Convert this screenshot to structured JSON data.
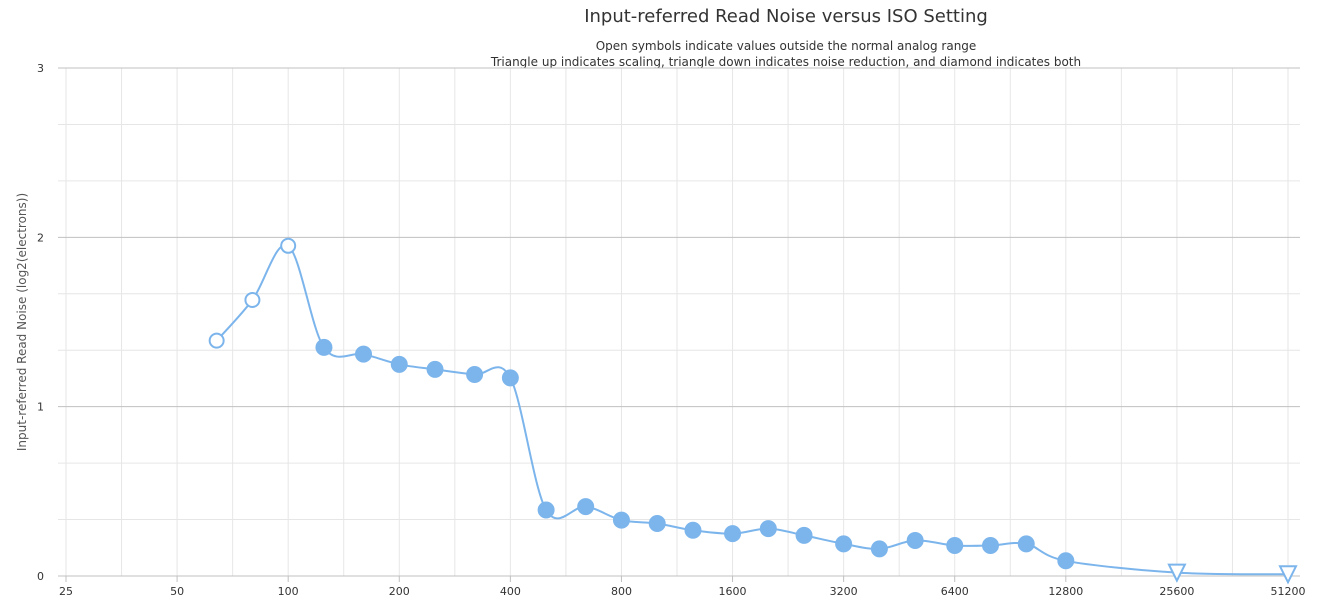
{
  "chart_data": {
    "type": "line",
    "title": "Input-referred Read Noise versus ISO Setting",
    "subtitle_lines": [
      "Open symbols indicate values outside the normal analog range",
      "Triangle up indicates scaling, triangle down indicates noise reduction, and diamond indicates both"
    ],
    "xlabel": "",
    "ylabel": "Input-referred Read Noise (log2(electrons))",
    "x_scale": "log2",
    "x_ticks": [
      25,
      50,
      100,
      200,
      400,
      800,
      1600,
      3200,
      6400,
      12800,
      25600,
      51200
    ],
    "xlim": [
      25,
      51200
    ],
    "y_ticks": [
      0,
      1,
      2,
      3
    ],
    "ylim": [
      0,
      3
    ],
    "grid": true,
    "series_color": "#7cb5ec",
    "series": [
      {
        "points": [
          {
            "x": 64,
            "y": 1.39,
            "marker": "open-circle"
          },
          {
            "x": 80,
            "y": 1.63,
            "marker": "open-circle"
          },
          {
            "x": 100,
            "y": 1.95,
            "marker": "open-circle"
          },
          {
            "x": 125,
            "y": 1.35,
            "marker": "circle"
          },
          {
            "x": 160,
            "y": 1.31,
            "marker": "circle"
          },
          {
            "x": 200,
            "y": 1.25,
            "marker": "circle"
          },
          {
            "x": 250,
            "y": 1.22,
            "marker": "circle"
          },
          {
            "x": 320,
            "y": 1.19,
            "marker": "circle"
          },
          {
            "x": 400,
            "y": 1.17,
            "marker": "circle"
          },
          {
            "x": 500,
            "y": 0.39,
            "marker": "circle"
          },
          {
            "x": 640,
            "y": 0.41,
            "marker": "circle"
          },
          {
            "x": 800,
            "y": 0.33,
            "marker": "circle"
          },
          {
            "x": 1000,
            "y": 0.31,
            "marker": "circle"
          },
          {
            "x": 1250,
            "y": 0.27,
            "marker": "circle"
          },
          {
            "x": 1600,
            "y": 0.25,
            "marker": "circle"
          },
          {
            "x": 2000,
            "y": 0.28,
            "marker": "circle"
          },
          {
            "x": 2500,
            "y": 0.24,
            "marker": "circle"
          },
          {
            "x": 3200,
            "y": 0.19,
            "marker": "circle"
          },
          {
            "x": 4000,
            "y": 0.16,
            "marker": "circle"
          },
          {
            "x": 5000,
            "y": 0.21,
            "marker": "circle"
          },
          {
            "x": 6400,
            "y": 0.18,
            "marker": "circle"
          },
          {
            "x": 8000,
            "y": 0.18,
            "marker": "circle"
          },
          {
            "x": 10000,
            "y": 0.19,
            "marker": "circle"
          },
          {
            "x": 12800,
            "y": 0.09,
            "marker": "circle"
          },
          {
            "x": 25600,
            "y": 0.02,
            "marker": "open-triangle-down"
          },
          {
            "x": 51200,
            "y": 0.01,
            "marker": "open-triangle-down"
          }
        ]
      }
    ]
  }
}
